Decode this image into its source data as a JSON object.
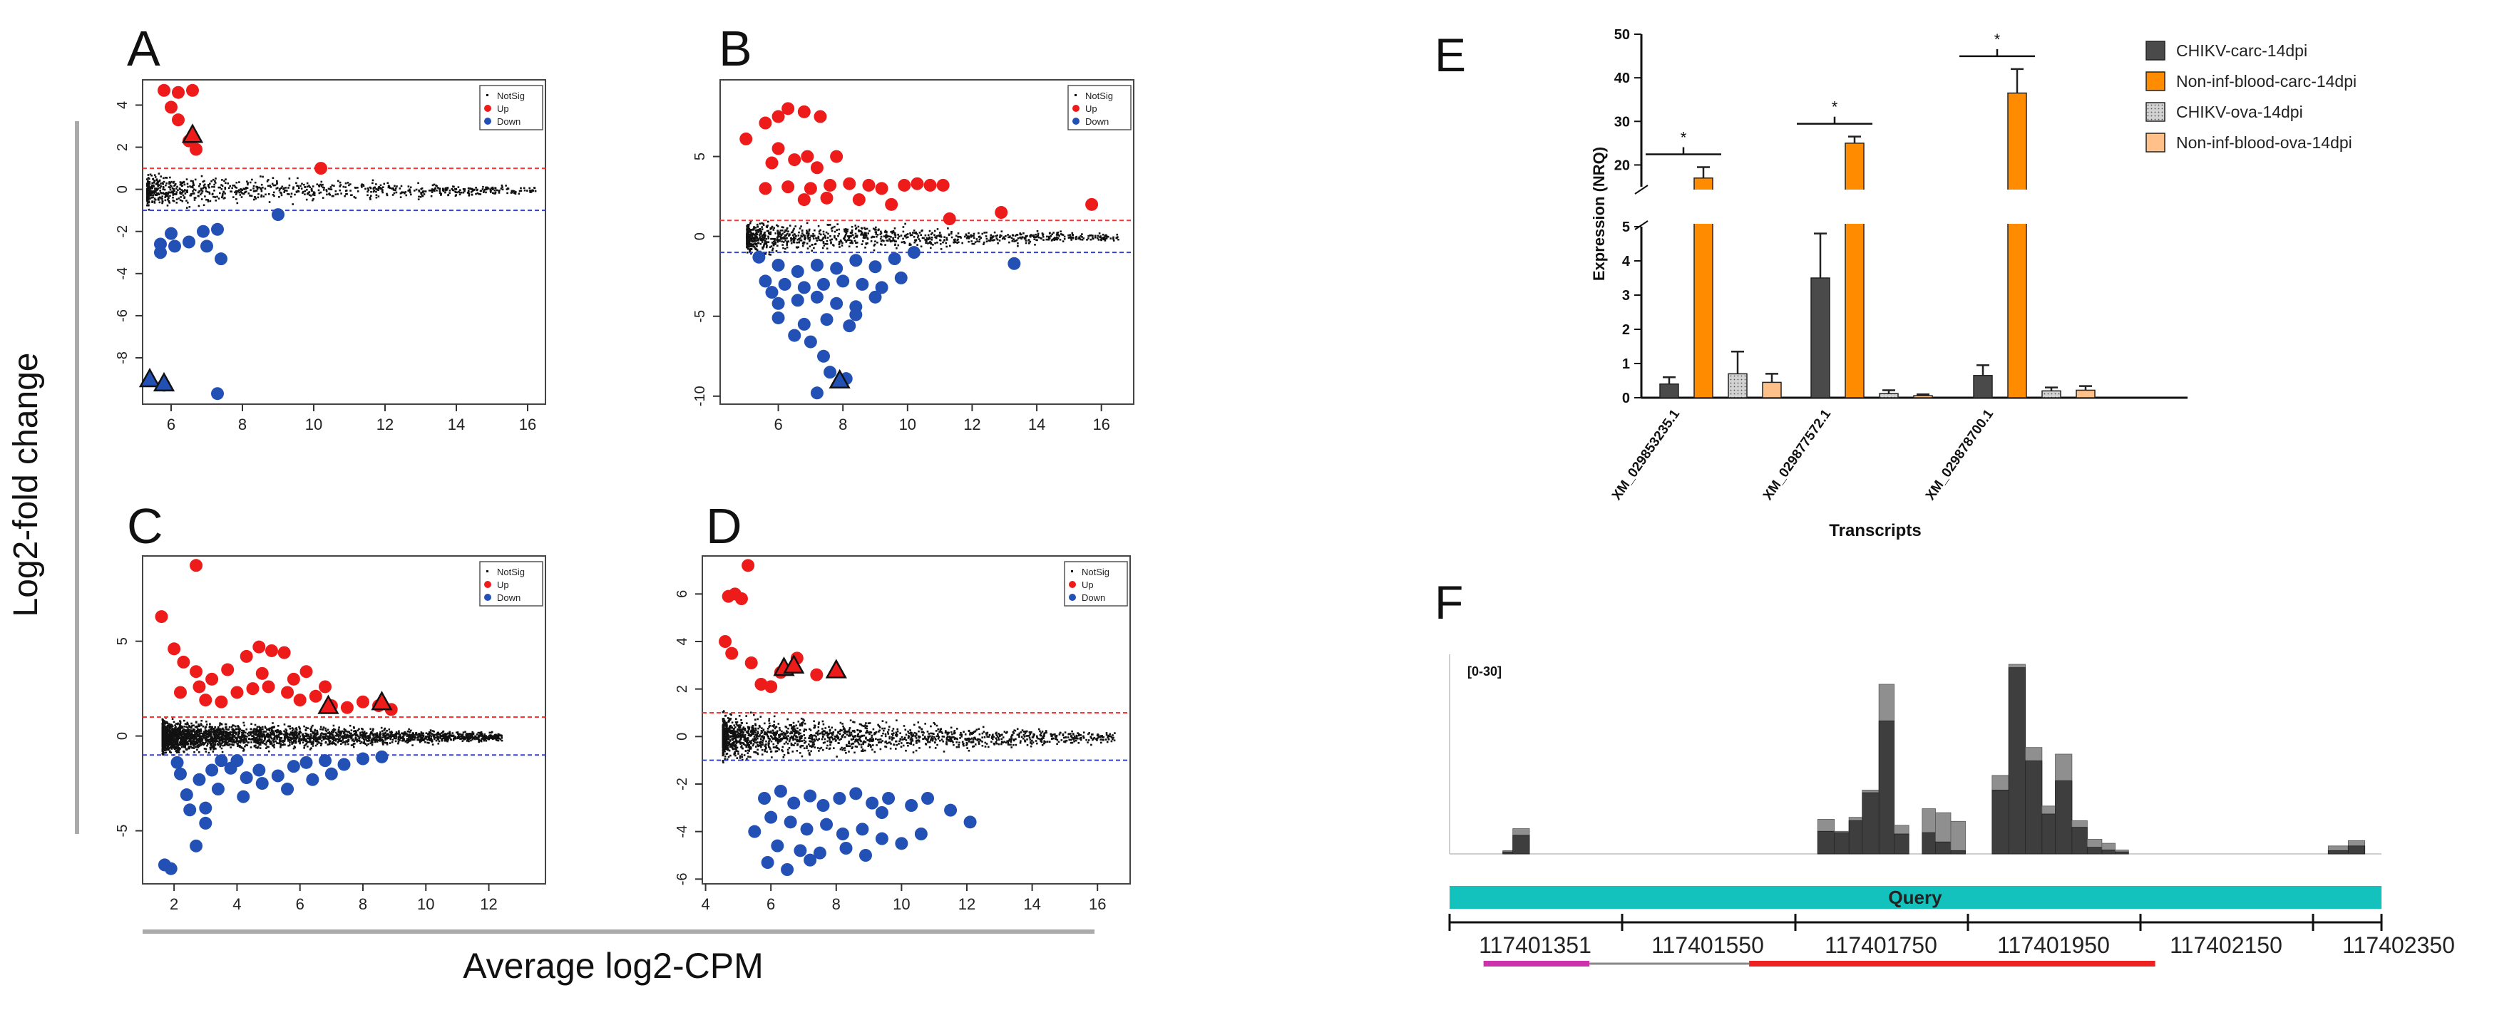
{
  "chart_data": [
    {
      "id": "A",
      "type": "scatter",
      "panel_label": "A",
      "xlim": [
        5.2,
        16.5
      ],
      "ylim": [
        -10.2,
        5.2
      ],
      "xticks": [
        6,
        8,
        10,
        12,
        14,
        16
      ],
      "yticks": [
        4,
        2,
        0,
        -2,
        -4,
        -6,
        -8
      ],
      "thresholds": [
        1,
        -1
      ],
      "legend": [
        "NotSig",
        "Up",
        "Down"
      ],
      "up": [
        [
          5.8,
          4.7
        ],
        [
          6.2,
          4.6
        ],
        [
          6.6,
          4.7
        ],
        [
          6.0,
          3.9
        ],
        [
          6.2,
          3.3
        ],
        [
          6.5,
          2.3
        ],
        [
          6.7,
          1.9
        ],
        [
          10.2,
          1.0
        ]
      ],
      "down": [
        [
          6.0,
          -2.1
        ],
        [
          5.7,
          -2.6
        ],
        [
          6.1,
          -2.7
        ],
        [
          6.5,
          -2.5
        ],
        [
          6.9,
          -2.0
        ],
        [
          7.3,
          -1.9
        ],
        [
          7.0,
          -2.7
        ],
        [
          7.4,
          -3.3
        ],
        [
          9.0,
          -1.2
        ],
        [
          5.7,
          -3.0
        ],
        [
          5.8,
          -9.3
        ],
        [
          7.3,
          -9.7
        ]
      ],
      "triangles_up": [
        [
          6.6,
          2.6
        ]
      ],
      "triangles_down": [
        [
          5.4,
          -9.0
        ],
        [
          5.8,
          -9.2
        ]
      ],
      "cloud": {
        "x0": 5.3,
        "x1": 16.2,
        "spread": 1.0,
        "count": 900
      }
    },
    {
      "id": "B",
      "type": "scatter",
      "panel_label": "B",
      "xlim": [
        4.2,
        17.0
      ],
      "ylim": [
        -10.5,
        9.8
      ],
      "xticks": [
        6,
        8,
        10,
        12,
        14,
        16
      ],
      "yticks": [
        5,
        0,
        -5,
        -10
      ],
      "thresholds": [
        1,
        -1
      ],
      "legend": [
        "NotSig",
        "Up",
        "Down"
      ],
      "up": [
        [
          5.0,
          6.1
        ],
        [
          5.6,
          7.1
        ],
        [
          6.0,
          7.5
        ],
        [
          6.3,
          8.0
        ],
        [
          6.8,
          7.8
        ],
        [
          7.3,
          7.5
        ],
        [
          6.0,
          5.5
        ],
        [
          5.8,
          4.6
        ],
        [
          6.5,
          4.8
        ],
        [
          6.9,
          5.0
        ],
        [
          7.2,
          4.3
        ],
        [
          7.8,
          5.0
        ],
        [
          6.3,
          3.1
        ],
        [
          7.0,
          3.0
        ],
        [
          7.6,
          3.2
        ],
        [
          8.2,
          3.3
        ],
        [
          8.8,
          3.2
        ],
        [
          9.2,
          3.0
        ],
        [
          9.9,
          3.2
        ],
        [
          10.3,
          3.3
        ],
        [
          10.7,
          3.2
        ],
        [
          11.1,
          3.2
        ],
        [
          6.8,
          2.3
        ],
        [
          7.5,
          2.4
        ],
        [
          8.5,
          2.3
        ],
        [
          9.5,
          2.0
        ],
        [
          5.6,
          3.0
        ],
        [
          11.3,
          1.1
        ],
        [
          12.9,
          1.5
        ],
        [
          15.7,
          2.0
        ]
      ],
      "down": [
        [
          5.4,
          -1.3
        ],
        [
          6.0,
          -1.8
        ],
        [
          6.6,
          -2.2
        ],
        [
          7.2,
          -1.8
        ],
        [
          7.8,
          -2.0
        ],
        [
          8.4,
          -1.5
        ],
        [
          9.0,
          -1.9
        ],
        [
          9.6,
          -1.4
        ],
        [
          10.2,
          -1.0
        ],
        [
          13.3,
          -1.7
        ],
        [
          5.6,
          -2.8
        ],
        [
          6.2,
          -3.0
        ],
        [
          6.8,
          -3.2
        ],
        [
          7.4,
          -3.0
        ],
        [
          8.0,
          -2.8
        ],
        [
          8.6,
          -3.0
        ],
        [
          9.2,
          -3.2
        ],
        [
          9.8,
          -2.6
        ],
        [
          6.0,
          -4.2
        ],
        [
          6.6,
          -4.0
        ],
        [
          7.2,
          -3.8
        ],
        [
          7.8,
          -4.2
        ],
        [
          8.4,
          -4.4
        ],
        [
          6.0,
          -5.1
        ],
        [
          6.8,
          -5.5
        ],
        [
          7.5,
          -5.2
        ],
        [
          8.2,
          -5.6
        ],
        [
          6.5,
          -6.2
        ],
        [
          7.0,
          -6.6
        ],
        [
          8.4,
          -4.9
        ],
        [
          5.8,
          -3.5
        ],
        [
          9.0,
          -3.8
        ],
        [
          7.2,
          -9.8
        ],
        [
          8.1,
          -8.9
        ],
        [
          7.6,
          -8.5
        ],
        [
          7.4,
          -7.5
        ]
      ],
      "triangles_up": [],
      "triangles_down": [
        [
          7.9,
          -9.0
        ]
      ],
      "cloud": {
        "x0": 5.0,
        "x1": 16.5,
        "spread": 1.3,
        "count": 1100
      }
    },
    {
      "id": "C",
      "type": "scatter",
      "panel_label": "C",
      "xlim": [
        1.0,
        13.8
      ],
      "ylim": [
        -7.8,
        9.5
      ],
      "xticks": [
        2,
        4,
        6,
        8,
        10,
        12
      ],
      "yticks": [
        5,
        0,
        -5
      ],
      "thresholds": [
        1,
        -1
      ],
      "legend": [
        "NotSig",
        "Up",
        "Down"
      ],
      "up": [
        [
          2.7,
          9.0
        ],
        [
          1.6,
          6.3
        ],
        [
          2.0,
          4.6
        ],
        [
          2.3,
          3.9
        ],
        [
          2.7,
          3.4
        ],
        [
          3.2,
          3.0
        ],
        [
          3.7,
          3.5
        ],
        [
          4.3,
          4.2
        ],
        [
          4.7,
          4.7
        ],
        [
          5.1,
          4.5
        ],
        [
          5.5,
          4.4
        ],
        [
          4.0,
          2.3
        ],
        [
          4.5,
          2.5
        ],
        [
          5.0,
          2.6
        ],
        [
          5.6,
          2.3
        ],
        [
          6.0,
          1.9
        ],
        [
          6.5,
          2.1
        ],
        [
          7.0,
          1.6
        ],
        [
          7.5,
          1.5
        ],
        [
          8.0,
          1.8
        ],
        [
          8.5,
          1.6
        ],
        [
          8.9,
          1.4
        ],
        [
          3.0,
          1.9
        ],
        [
          3.5,
          1.8
        ],
        [
          2.2,
          2.3
        ],
        [
          4.8,
          3.3
        ],
        [
          5.8,
          3.0
        ],
        [
          6.8,
          2.6
        ],
        [
          2.8,
          2.6
        ],
        [
          6.2,
          3.4
        ]
      ],
      "down": [
        [
          1.7,
          -6.8
        ],
        [
          1.9,
          -7.0
        ],
        [
          2.7,
          -5.8
        ],
        [
          2.5,
          -3.9
        ],
        [
          3.0,
          -3.8
        ],
        [
          3.4,
          -2.8
        ],
        [
          2.4,
          -3.1
        ],
        [
          2.8,
          -2.3
        ],
        [
          2.2,
          -2.0
        ],
        [
          3.2,
          -1.8
        ],
        [
          3.8,
          -1.7
        ],
        [
          4.3,
          -2.2
        ],
        [
          4.7,
          -1.8
        ],
        [
          5.3,
          -2.1
        ],
        [
          5.8,
          -1.6
        ],
        [
          6.2,
          -1.4
        ],
        [
          6.8,
          -1.3
        ],
        [
          7.4,
          -1.5
        ],
        [
          8.0,
          -1.2
        ],
        [
          8.6,
          -1.1
        ],
        [
          3.5,
          -1.3
        ],
        [
          4.8,
          -2.5
        ],
        [
          5.6,
          -2.8
        ],
        [
          6.4,
          -2.3
        ],
        [
          7.0,
          -2.0
        ],
        [
          4.0,
          -1.3
        ],
        [
          3.0,
          -4.6
        ],
        [
          4.2,
          -3.2
        ],
        [
          2.1,
          -1.4
        ]
      ],
      "triangles_up": [
        [
          6.9,
          1.6
        ],
        [
          8.6,
          1.8
        ]
      ],
      "triangles_down": [],
      "cloud": {
        "x0": 1.6,
        "x1": 12.4,
        "spread": 1.1,
        "count": 3000
      }
    },
    {
      "id": "D",
      "type": "scatter",
      "panel_label": "D",
      "xlim": [
        3.9,
        17.0
      ],
      "ylim": [
        -6.2,
        7.6
      ],
      "xticks": [
        4,
        6,
        8,
        10,
        12,
        14,
        16
      ],
      "yticks": [
        6,
        4,
        2,
        0,
        -2,
        -4,
        -6
      ],
      "thresholds": [
        1,
        -1
      ],
      "legend": [
        "NotSig",
        "Up",
        "Down"
      ],
      "up": [
        [
          5.3,
          7.2
        ],
        [
          4.7,
          5.9
        ],
        [
          4.9,
          6.0
        ],
        [
          5.1,
          5.8
        ],
        [
          4.6,
          4.0
        ],
        [
          4.8,
          3.5
        ],
        [
          5.4,
          3.1
        ],
        [
          5.7,
          2.2
        ],
        [
          6.3,
          2.7
        ],
        [
          6.8,
          3.3
        ],
        [
          7.4,
          2.6
        ],
        [
          6.0,
          2.1
        ]
      ],
      "down": [
        [
          5.8,
          -2.6
        ],
        [
          6.3,
          -2.3
        ],
        [
          6.7,
          -2.8
        ],
        [
          7.2,
          -2.5
        ],
        [
          7.6,
          -2.9
        ],
        [
          8.1,
          -2.6
        ],
        [
          8.6,
          -2.4
        ],
        [
          9.1,
          -2.8
        ],
        [
          9.6,
          -2.6
        ],
        [
          10.3,
          -2.9
        ],
        [
          10.8,
          -2.6
        ],
        [
          11.5,
          -3.1
        ],
        [
          12.1,
          -3.6
        ],
        [
          6.0,
          -3.4
        ],
        [
          6.6,
          -3.6
        ],
        [
          7.1,
          -3.9
        ],
        [
          7.7,
          -3.7
        ],
        [
          8.2,
          -4.1
        ],
        [
          8.8,
          -3.9
        ],
        [
          9.4,
          -4.3
        ],
        [
          10.0,
          -4.5
        ],
        [
          10.6,
          -4.1
        ],
        [
          6.2,
          -4.6
        ],
        [
          6.9,
          -4.8
        ],
        [
          7.5,
          -4.9
        ],
        [
          8.3,
          -4.7
        ],
        [
          5.9,
          -5.3
        ],
        [
          6.5,
          -5.6
        ],
        [
          7.2,
          -5.2
        ],
        [
          8.9,
          -5.0
        ],
        [
          5.5,
          -4.0
        ],
        [
          9.4,
          -3.2
        ]
      ],
      "triangles_up": [
        [
          6.4,
          2.9
        ],
        [
          6.7,
          3.0
        ],
        [
          8.0,
          2.8
        ]
      ],
      "triangles_down": [],
      "cloud": {
        "x0": 4.5,
        "x1": 16.5,
        "spread": 1.2,
        "count": 1800
      }
    },
    {
      "id": "E",
      "type": "bar",
      "panel_label": "E",
      "ylabel": "Expression (NRQ)",
      "xlabel": "Transcripts",
      "categories": [
        "XM_029853235.1",
        "XM_029877572.1",
        "XM_029878700.1"
      ],
      "series": [
        {
          "name": "CHIKV-carc-14dpi",
          "color": "#4a4a4a",
          "values": [
            0.4,
            3.5,
            0.65
          ],
          "errors": [
            0.2,
            1.3,
            0.3
          ]
        },
        {
          "name": "Non-inf-blood-carc-14dpi",
          "color": "#ff8c00",
          "values": [
            17,
            25,
            36.5
          ],
          "errors": [
            2.5,
            1.5,
            5.5
          ]
        },
        {
          "name": "CHIKV-ova-14dpi",
          "color": "#c8c8c8",
          "values": [
            0.7,
            0.12,
            0.2
          ],
          "errors": [
            0.65,
            0.1,
            0.1
          ]
        },
        {
          "name": "Non-inf-blood-ova-14dpi",
          "color": "#ffc08a",
          "values": [
            0.45,
            0.06,
            0.22
          ],
          "errors": [
            0.25,
            0.04,
            0.12
          ]
        }
      ],
      "y_lower_ticks": [
        0,
        1,
        2,
        3,
        4,
        5
      ],
      "y_upper_ticks": [
        20,
        30,
        40,
        50
      ],
      "y_lower_range": [
        0,
        5
      ],
      "y_upper_range": [
        15,
        50
      ],
      "significance": [
        "*",
        "*",
        "*"
      ]
    },
    {
      "id": "F",
      "type": "bar",
      "panel_label": "F",
      "range_label": "[0-30]",
      "query_label": "Query",
      "coordinates": [
        "117401351",
        "117401550",
        "117401750",
        "117401950",
        "117402150",
        "117402350"
      ],
      "coverage": [
        {
          "start": 117401380,
          "end": 117401395,
          "dark": 0.3,
          "light": 0.5
        },
        {
          "start": 117401395,
          "end": 117401420,
          "dark": 2.8,
          "light": 3.8
        },
        {
          "start": 117401853,
          "end": 117401878,
          "dark": 3.4,
          "light": 5.2
        },
        {
          "start": 117401878,
          "end": 117401900,
          "dark": 3.2,
          "light": 3.4
        },
        {
          "start": 117401900,
          "end": 117401920,
          "dark": 5.0,
          "light": 5.5
        },
        {
          "start": 117401920,
          "end": 117401945,
          "dark": 9.2,
          "light": 9.6
        },
        {
          "start": 117401945,
          "end": 117401968,
          "dark": 20.0,
          "light": 25.5
        },
        {
          "start": 117401968,
          "end": 117401990,
          "dark": 3.0,
          "light": 4.3
        },
        {
          "start": 117402010,
          "end": 117402030,
          "dark": 3.2,
          "light": 6.8
        },
        {
          "start": 117402030,
          "end": 117402053,
          "dark": 1.8,
          "light": 6.2
        },
        {
          "start": 117402053,
          "end": 117402075,
          "dark": 0.5,
          "light": 4.9
        },
        {
          "start": 117402115,
          "end": 117402140,
          "dark": 9.6,
          "light": 11.8
        },
        {
          "start": 117402140,
          "end": 117402165,
          "dark": 28.0,
          "light": 28.5
        },
        {
          "start": 117402165,
          "end": 117402190,
          "dark": 14.0,
          "light": 16.0
        },
        {
          "start": 117402190,
          "end": 117402210,
          "dark": 6.0,
          "light": 7.2
        },
        {
          "start": 117402210,
          "end": 117402235,
          "dark": 11.0,
          "light": 15.0
        },
        {
          "start": 117402235,
          "end": 117402258,
          "dark": 4.0,
          "light": 5.0
        },
        {
          "start": 117402258,
          "end": 117402280,
          "dark": 1.0,
          "light": 2.2
        },
        {
          "start": 117402280,
          "end": 117402300,
          "dark": 0.6,
          "light": 1.6
        },
        {
          "start": 117402300,
          "end": 117402320,
          "dark": 0.3,
          "light": 0.6
        },
        {
          "start": 117402620,
          "end": 117402650,
          "dark": 0.5,
          "light": 1.2
        },
        {
          "start": 117402650,
          "end": 117402675,
          "dark": 1.2,
          "light": 2.0
        }
      ],
      "features": [
        {
          "start": 117401351,
          "end": 117401510,
          "color": "#cc33aa"
        },
        {
          "start": 117401510,
          "end": 117401750,
          "color": "#888888"
        },
        {
          "start": 117401750,
          "end": 117402360,
          "color": "#ee2222"
        }
      ]
    }
  ],
  "shared": {
    "y_axis_label": "Log2-fold change",
    "x_axis_label": "Average log2-CPM"
  }
}
